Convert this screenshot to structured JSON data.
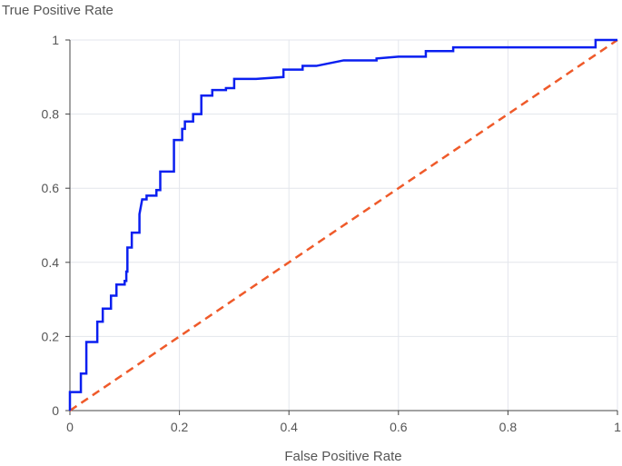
{
  "chart_data": {
    "type": "line",
    "xlabel": "False Positive Rate",
    "ylabel": "True Positive Rate",
    "xlim": [
      0,
      1
    ],
    "ylim": [
      0,
      1
    ],
    "grid": true,
    "xticks": [
      "0",
      "0.2",
      "0.4",
      "0.6",
      "0.8",
      "1"
    ],
    "yticks": [
      "0",
      "0.2",
      "0.4",
      "0.6",
      "0.8",
      "1"
    ],
    "xtick_values": [
      0,
      0.2,
      0.4,
      0.6,
      0.8,
      1
    ],
    "ytick_values": [
      0,
      0.2,
      0.4,
      0.6,
      0.8,
      1
    ],
    "series": [
      {
        "color": "#0a1ff0",
        "style": "solid",
        "points": [
          [
            0,
            0
          ],
          [
            0,
            0.05
          ],
          [
            0.02,
            0.05
          ],
          [
            0.02,
            0.1
          ],
          [
            0.03,
            0.1
          ],
          [
            0.03,
            0.185
          ],
          [
            0.05,
            0.185
          ],
          [
            0.05,
            0.24
          ],
          [
            0.06,
            0.24
          ],
          [
            0.06,
            0.275
          ],
          [
            0.075,
            0.275
          ],
          [
            0.075,
            0.31
          ],
          [
            0.085,
            0.31
          ],
          [
            0.085,
            0.34
          ],
          [
            0.1,
            0.34
          ],
          [
            0.1,
            0.35
          ],
          [
            0.103,
            0.35
          ],
          [
            0.103,
            0.375
          ],
          [
            0.105,
            0.375
          ],
          [
            0.105,
            0.44
          ],
          [
            0.113,
            0.44
          ],
          [
            0.113,
            0.48
          ],
          [
            0.127,
            0.48
          ],
          [
            0.127,
            0.53
          ],
          [
            0.132,
            0.57
          ],
          [
            0.14,
            0.57
          ],
          [
            0.14,
            0.58
          ],
          [
            0.158,
            0.58
          ],
          [
            0.158,
            0.595
          ],
          [
            0.165,
            0.595
          ],
          [
            0.165,
            0.645
          ],
          [
            0.19,
            0.645
          ],
          [
            0.19,
            0.73
          ],
          [
            0.205,
            0.73
          ],
          [
            0.205,
            0.76
          ],
          [
            0.21,
            0.76
          ],
          [
            0.21,
            0.78
          ],
          [
            0.225,
            0.78
          ],
          [
            0.225,
            0.8
          ],
          [
            0.24,
            0.8
          ],
          [
            0.24,
            0.85
          ],
          [
            0.26,
            0.85
          ],
          [
            0.26,
            0.865
          ],
          [
            0.285,
            0.865
          ],
          [
            0.285,
            0.87
          ],
          [
            0.3,
            0.87
          ],
          [
            0.3,
            0.895
          ],
          [
            0.34,
            0.895
          ],
          [
            0.39,
            0.9
          ],
          [
            0.39,
            0.92
          ],
          [
            0.425,
            0.92
          ],
          [
            0.425,
            0.93
          ],
          [
            0.45,
            0.93
          ],
          [
            0.5,
            0.945
          ],
          [
            0.56,
            0.945
          ],
          [
            0.56,
            0.95
          ],
          [
            0.6,
            0.955
          ],
          [
            0.65,
            0.955
          ],
          [
            0.65,
            0.97
          ],
          [
            0.7,
            0.97
          ],
          [
            0.7,
            0.98
          ],
          [
            0.96,
            0.98
          ],
          [
            0.96,
            1.0
          ],
          [
            1.0,
            1.0
          ]
        ]
      },
      {
        "color": "#ef5a2a",
        "style": "dashed",
        "points": [
          [
            0,
            0
          ],
          [
            1,
            1
          ]
        ]
      }
    ]
  }
}
